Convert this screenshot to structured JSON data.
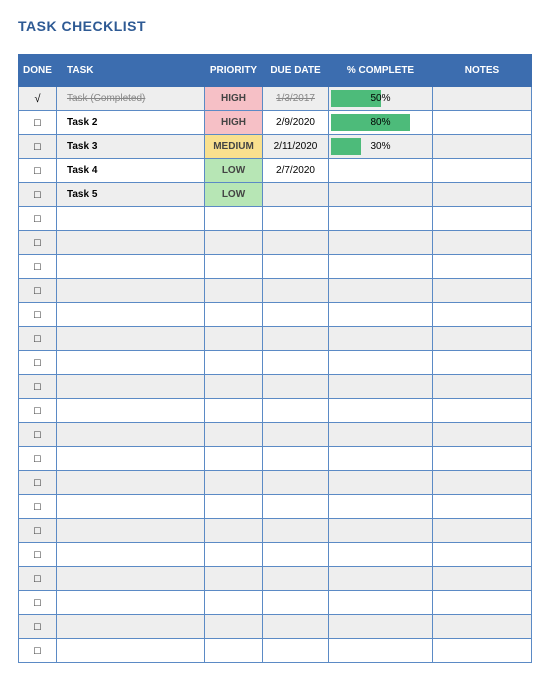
{
  "title": "TASK CHECKLIST",
  "columns": {
    "done": "DONE",
    "task": "TASK",
    "priority": "PRIORITY",
    "due": "DUE DATE",
    "percent": "% COMPLETE",
    "notes": "NOTES"
  },
  "priority_colors": {
    "HIGH": "#f6c0c6",
    "MEDIUM": "#f9e08e",
    "LOW": "#b7e6b5"
  },
  "header_bg": "#3c6daf",
  "header_text": "#ffffff",
  "border_color": "#5b8ac5",
  "alt_row_bg": "#eeeeee",
  "percent_fill_color": "#4dbb7a",
  "title_color": "#2e5a94",
  "check_glyph": "√",
  "box_glyph": "□",
  "rows": [
    {
      "done": true,
      "task": "Task (Completed)",
      "priority": "HIGH",
      "due": "1/3/2017",
      "percent": 50
    },
    {
      "done": false,
      "task": "Task 2",
      "priority": "HIGH",
      "due": "2/9/2020",
      "percent": 80
    },
    {
      "done": false,
      "task": "Task 3",
      "priority": "MEDIUM",
      "due": "2/11/2020",
      "percent": 30
    },
    {
      "done": false,
      "task": "Task 4",
      "priority": "LOW",
      "due": "2/7/2020",
      "percent": null
    },
    {
      "done": false,
      "task": "Task 5",
      "priority": "LOW",
      "due": "",
      "percent": null
    },
    {
      "done": false,
      "task": "",
      "priority": "",
      "due": "",
      "percent": null
    },
    {
      "done": false,
      "task": "",
      "priority": "",
      "due": "",
      "percent": null
    },
    {
      "done": false,
      "task": "",
      "priority": "",
      "due": "",
      "percent": null
    },
    {
      "done": false,
      "task": "",
      "priority": "",
      "due": "",
      "percent": null
    },
    {
      "done": false,
      "task": "",
      "priority": "",
      "due": "",
      "percent": null
    },
    {
      "done": false,
      "task": "",
      "priority": "",
      "due": "",
      "percent": null
    },
    {
      "done": false,
      "task": "",
      "priority": "",
      "due": "",
      "percent": null
    },
    {
      "done": false,
      "task": "",
      "priority": "",
      "due": "",
      "percent": null
    },
    {
      "done": false,
      "task": "",
      "priority": "",
      "due": "",
      "percent": null
    },
    {
      "done": false,
      "task": "",
      "priority": "",
      "due": "",
      "percent": null
    },
    {
      "done": false,
      "task": "",
      "priority": "",
      "due": "",
      "percent": null
    },
    {
      "done": false,
      "task": "",
      "priority": "",
      "due": "",
      "percent": null
    },
    {
      "done": false,
      "task": "",
      "priority": "",
      "due": "",
      "percent": null
    },
    {
      "done": false,
      "task": "",
      "priority": "",
      "due": "",
      "percent": null
    },
    {
      "done": false,
      "task": "",
      "priority": "",
      "due": "",
      "percent": null
    },
    {
      "done": false,
      "task": "",
      "priority": "",
      "due": "",
      "percent": null
    },
    {
      "done": false,
      "task": "",
      "priority": "",
      "due": "",
      "percent": null
    },
    {
      "done": false,
      "task": "",
      "priority": "",
      "due": "",
      "percent": null
    },
    {
      "done": false,
      "task": "",
      "priority": "",
      "due": "",
      "percent": null
    }
  ]
}
